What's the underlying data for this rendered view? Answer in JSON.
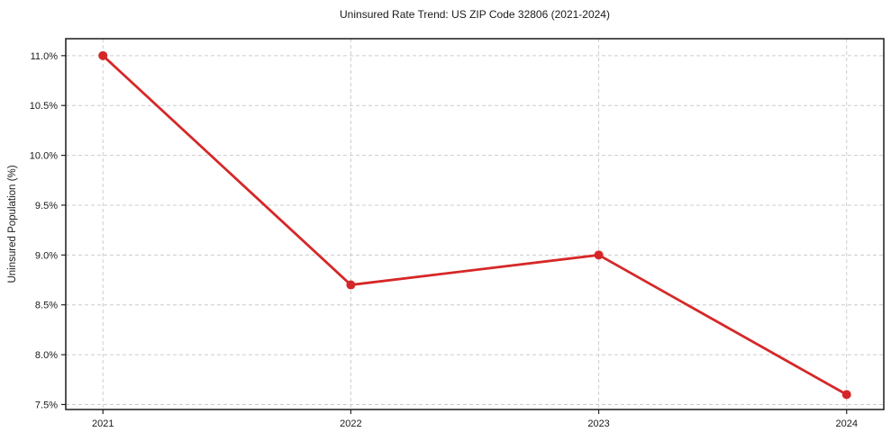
{
  "chart_data": {
    "type": "line",
    "title": "Uninsured Rate Trend: US ZIP Code 32806 (2021-2024)",
    "xlabel": "",
    "ylabel": "Uninsured Population (%)",
    "x": [
      2021,
      2022,
      2023,
      2024
    ],
    "values": [
      11.0,
      8.7,
      9.0,
      7.6
    ],
    "line_color": "#d62728",
    "marker": "circle",
    "marker_radius": 5,
    "grid": "dashed",
    "legend": "none",
    "xlim": [
      2020.85,
      2024.15
    ],
    "ylim": [
      7.45,
      11.17
    ],
    "xticks": [
      {
        "v": 2021,
        "label": "2021"
      },
      {
        "v": 2022,
        "label": "2022"
      },
      {
        "v": 2023,
        "label": "2023"
      },
      {
        "v": 2024,
        "label": "2024"
      }
    ],
    "yticks": [
      {
        "v": 7.5,
        "label": "7.5%"
      },
      {
        "v": 8.0,
        "label": "8.0%"
      },
      {
        "v": 8.5,
        "label": "8.5%"
      },
      {
        "v": 9.0,
        "label": "9.0%"
      },
      {
        "v": 9.5,
        "label": "9.5%"
      },
      {
        "v": 10.0,
        "label": "10.0%"
      },
      {
        "v": 10.5,
        "label": "10.5%"
      },
      {
        "v": 11.0,
        "label": "11.0%"
      }
    ]
  }
}
